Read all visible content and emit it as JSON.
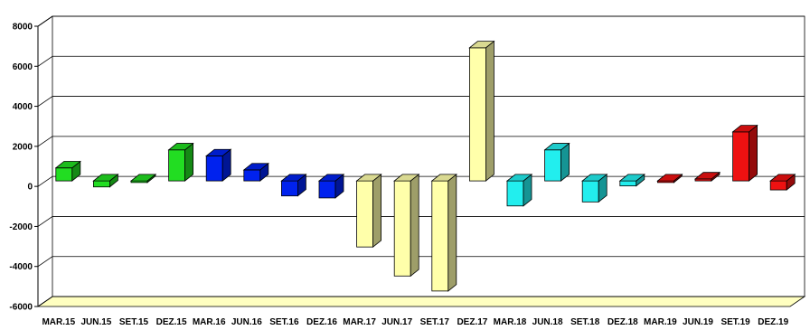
{
  "chart_data": {
    "type": "bar",
    "categories": [
      "MAR.15",
      "JUN.15",
      "SET.15",
      "DEZ.15",
      "MAR.16",
      "JUN.16",
      "SET.16",
      "DEZ.16",
      "MAR.17",
      "JUN.17",
      "SET.17",
      "DEZ.17",
      "MAR.18",
      "JUN.18",
      "SET.18",
      "DEZ.18",
      "MAR.19",
      "JUN.19",
      "SET.19",
      "DEZ.19"
    ],
    "values": [
      650,
      -300,
      -80,
      1550,
      1250,
      550,
      -750,
      -850,
      -3300,
      -4750,
      -5500,
      6650,
      -1250,
      1550,
      -1050,
      -250,
      -80,
      100,
      2450,
      -450
    ],
    "colors": [
      "#22dd22",
      "#22dd22",
      "#22dd22",
      "#22dd22",
      "#0022ee",
      "#0022ee",
      "#0022ee",
      "#0022ee",
      "#ffffaa",
      "#ffffaa",
      "#ffffaa",
      "#ffffaa",
      "#22eeee",
      "#22eeee",
      "#22eeee",
      "#22eeee",
      "#ee1111",
      "#ee1111",
      "#ee1111",
      "#ee1111"
    ],
    "yticks": [
      "8000",
      "6000",
      "4000",
      "2000",
      "0",
      "-2000",
      "-4000",
      "-6000"
    ],
    "ylim": [
      -6000,
      8000
    ],
    "grid": true,
    "title": "",
    "xlabel": "",
    "ylabel": ""
  }
}
